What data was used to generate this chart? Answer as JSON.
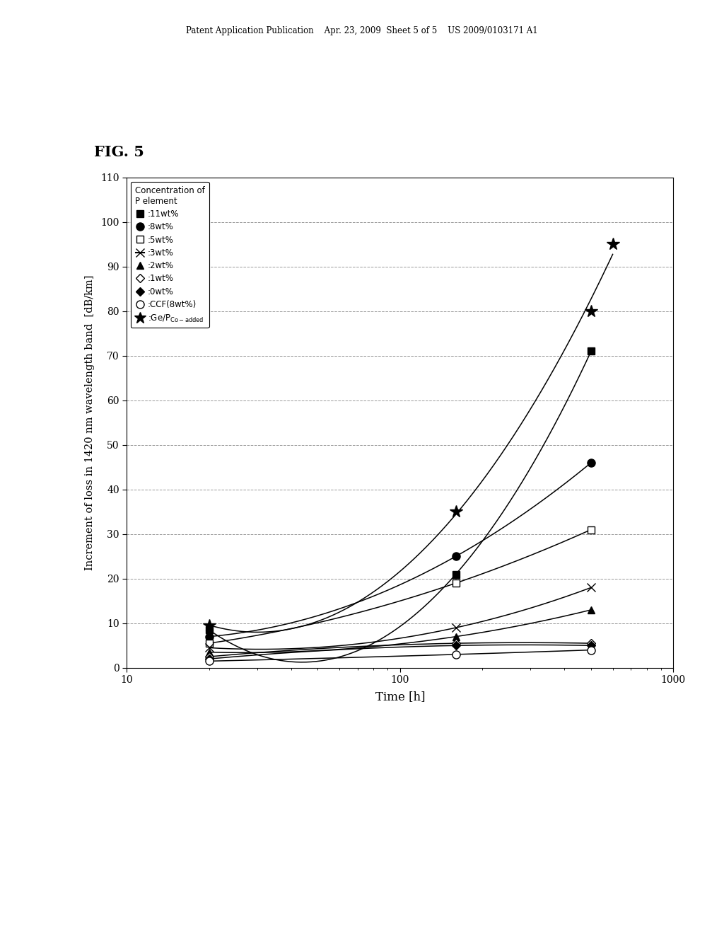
{
  "header_text": "Patent Application Publication    Apr. 23, 2009  Sheet 5 of 5    US 2009/0103171 A1",
  "fig_label": "FIG. 5",
  "xlabel": "Time [h]",
  "ylabel": "Increment of loss in 1420 nm wavelength band  [dB/km]",
  "xlim": [
    10,
    1000
  ],
  "ylim": [
    0,
    110
  ],
  "yticks": [
    0,
    10,
    20,
    30,
    40,
    50,
    60,
    70,
    80,
    90,
    100,
    110
  ],
  "legend_title": "Concentration of\nP element",
  "background_color": "#ffffff",
  "grid_color": "#999999",
  "series": [
    {
      "label": ":11wt%",
      "marker": "s",
      "mfc": "black",
      "mec": "black",
      "ms": 7,
      "x": [
        20,
        160,
        500
      ],
      "y": [
        8.5,
        21.0,
        71.0
      ]
    },
    {
      "label": ":8wt%",
      "marker": "o",
      "mfc": "black",
      "mec": "black",
      "ms": 8,
      "x": [
        20,
        160,
        500
      ],
      "y": [
        7.0,
        25.0,
        46.0
      ]
    },
    {
      "label": ":5wt%",
      "marker": "s",
      "mfc": "white",
      "mec": "black",
      "ms": 7,
      "x": [
        20,
        160,
        500
      ],
      "y": [
        5.5,
        19.0,
        31.0
      ]
    },
    {
      "label": ":3wt%",
      "marker": "x",
      "mfc": "black",
      "mec": "black",
      "ms": 8,
      "x": [
        20,
        160,
        500
      ],
      "y": [
        4.5,
        9.0,
        18.0
      ]
    },
    {
      "label": ":2wt%",
      "marker": "^",
      "mfc": "black",
      "mec": "black",
      "ms": 7,
      "x": [
        20,
        160,
        500
      ],
      "y": [
        3.5,
        7.0,
        13.0
      ]
    },
    {
      "label": ":1wt%",
      "marker": "D",
      "mfc": "white",
      "mec": "black",
      "ms": 6,
      "x": [
        20,
        160,
        500
      ],
      "y": [
        2.5,
        5.5,
        5.5
      ]
    },
    {
      "label": ":0wt%",
      "marker": "D",
      "mfc": "black",
      "mec": "black",
      "ms": 6,
      "x": [
        20,
        160,
        500
      ],
      "y": [
        2.0,
        5.0,
        5.0
      ]
    },
    {
      "label": ":CCF(8wt%)",
      "marker": "o",
      "mfc": "white",
      "mec": "black",
      "ms": 8,
      "x": [
        20,
        160,
        500
      ],
      "y": [
        1.5,
        3.0,
        4.0
      ]
    },
    {
      "label": ":Ge/PCo-added",
      "marker": "*",
      "mfc": "black",
      "mec": "black",
      "ms": 13,
      "x": [
        20,
        160,
        500,
        600
      ],
      "y": [
        9.5,
        35.0,
        80.0,
        95.0
      ]
    }
  ]
}
